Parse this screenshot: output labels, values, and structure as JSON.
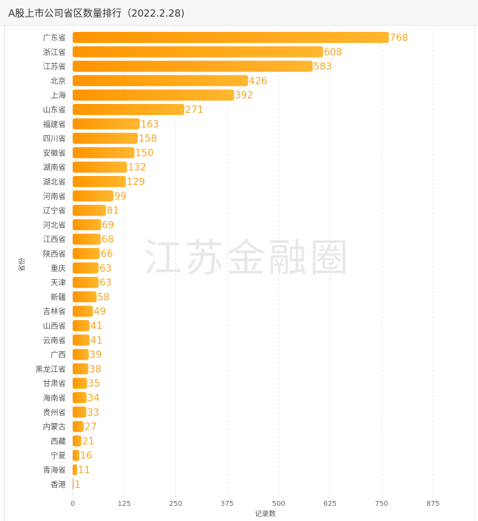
{
  "page": {
    "title": "A股上市公司省区数量排行（2022.2.28)",
    "watermark": "江苏金融圈"
  },
  "colors": {
    "bar_start": "#ff9500",
    "bar_end": "#ffb62e",
    "value_label": "#f5a623",
    "grid": "#e5e5e5"
  },
  "chart_data": {
    "type": "bar",
    "orientation": "horizontal",
    "title": "A股上市公司省区数量排行（2022.2.28)",
    "xlabel": "记录数",
    "ylabel": "省份",
    "xlim": [
      0,
      900
    ],
    "xticks": [
      0,
      125,
      250,
      375,
      500,
      625,
      750,
      875
    ],
    "grid": true,
    "categories": [
      "广东省",
      "浙江省",
      "江苏省",
      "北京",
      "上海",
      "山东省",
      "福建省",
      "四川省",
      "安徽省",
      "湖南省",
      "湖北省",
      "河南省",
      "辽宁省",
      "河北省",
      "江西省",
      "陕西省",
      "重庆",
      "天津",
      "新疆",
      "吉林省",
      "山西省",
      "云南省",
      "广西",
      "黑龙江省",
      "甘肃省",
      "海南省",
      "贵州省",
      "内蒙古",
      "西藏",
      "宁夏",
      "青海省",
      "香港"
    ],
    "values": [
      768,
      608,
      583,
      426,
      392,
      271,
      163,
      158,
      150,
      132,
      129,
      99,
      81,
      69,
      68,
      66,
      63,
      63,
      58,
      49,
      41,
      41,
      39,
      38,
      35,
      34,
      33,
      27,
      21,
      16,
      11,
      1
    ]
  }
}
